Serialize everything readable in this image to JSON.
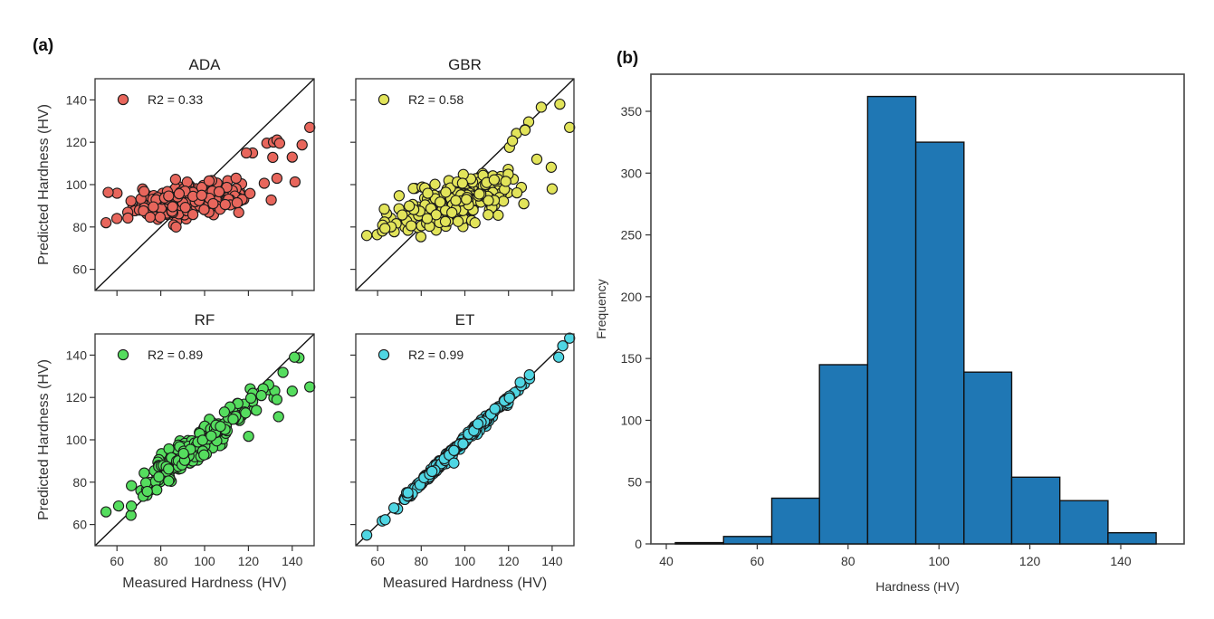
{
  "figure": {
    "panel_a_label": "(a)",
    "panel_b_label": "(b)"
  },
  "chart_data": [
    {
      "type": "scatter",
      "title": "ADA",
      "xlabel": "Measured Hardness (HV)",
      "ylabel": "Predicted Hardness (HV)",
      "xlim": [
        50,
        150
      ],
      "ylim": [
        50,
        150
      ],
      "xticks": [
        60,
        80,
        100,
        120,
        140
      ],
      "yticks": [
        60,
        80,
        100,
        120,
        140
      ],
      "show_xtick_labels": false,
      "show_ytick_labels": true,
      "show_ylabel": true,
      "show_xlabel": false,
      "legend": "R2 = 0.33",
      "legend_position": "top-left",
      "color": "#e8665c",
      "identity_line": true,
      "model": "ada"
    },
    {
      "type": "scatter",
      "title": "GBR",
      "xlabel": "Measured Hardness (HV)",
      "ylabel": "Predicted Hardness (HV)",
      "xlim": [
        50,
        150
      ],
      "ylim": [
        50,
        150
      ],
      "xticks": [
        60,
        80,
        100,
        120,
        140
      ],
      "yticks": [
        60,
        80,
        100,
        120,
        140
      ],
      "show_xtick_labels": false,
      "show_ytick_labels": false,
      "show_ylabel": false,
      "show_xlabel": false,
      "legend": "R2 = 0.58",
      "legend_position": "top-left",
      "color": "#e2e45a",
      "identity_line": true,
      "model": "gbr"
    },
    {
      "type": "scatter",
      "title": "RF",
      "xlabel": "Measured Hardness (HV)",
      "ylabel": "Predicted Hardness (HV)",
      "xlim": [
        50,
        150
      ],
      "ylim": [
        50,
        150
      ],
      "xticks": [
        60,
        80,
        100,
        120,
        140
      ],
      "yticks": [
        60,
        80,
        100,
        120,
        140
      ],
      "show_xtick_labels": true,
      "show_ytick_labels": true,
      "show_ylabel": true,
      "show_xlabel": true,
      "legend": "R2 = 0.89",
      "legend_position": "top-left",
      "color": "#55dd5e",
      "identity_line": true,
      "model": "rf"
    },
    {
      "type": "scatter",
      "title": "ET",
      "xlabel": "Measured Hardness (HV)",
      "ylabel": "Predicted Hardness (HV)",
      "xlim": [
        50,
        150
      ],
      "ylim": [
        50,
        150
      ],
      "xticks": [
        60,
        80,
        100,
        120,
        140
      ],
      "yticks": [
        60,
        80,
        100,
        120,
        140
      ],
      "show_xtick_labels": true,
      "show_ytick_labels": false,
      "show_ylabel": false,
      "show_xlabel": true,
      "legend": "R2 = 0.99",
      "legend_position": "top-left",
      "color": "#4fd6e3",
      "identity_line": true,
      "model": "et"
    },
    {
      "type": "bar",
      "subtype": "histogram",
      "title": "",
      "xlabel": "Hardness (HV)",
      "ylabel": "Frequency",
      "xlim": [
        37,
        153
      ],
      "ylim": [
        0,
        380
      ],
      "xticks": [
        40,
        60,
        80,
        100,
        120,
        140
      ],
      "yticks": [
        0,
        50,
        100,
        150,
        200,
        250,
        300,
        350
      ],
      "bin_edges": [
        42,
        52.6,
        63.2,
        73.7,
        84.3,
        94.9,
        105.5,
        116.0,
        126.6,
        137.2,
        147.8
      ],
      "values": [
        1,
        6,
        37,
        145,
        362,
        325,
        139,
        54,
        35,
        9
      ],
      "color": "#1f77b4",
      "edgecolor": "#111111"
    }
  ]
}
